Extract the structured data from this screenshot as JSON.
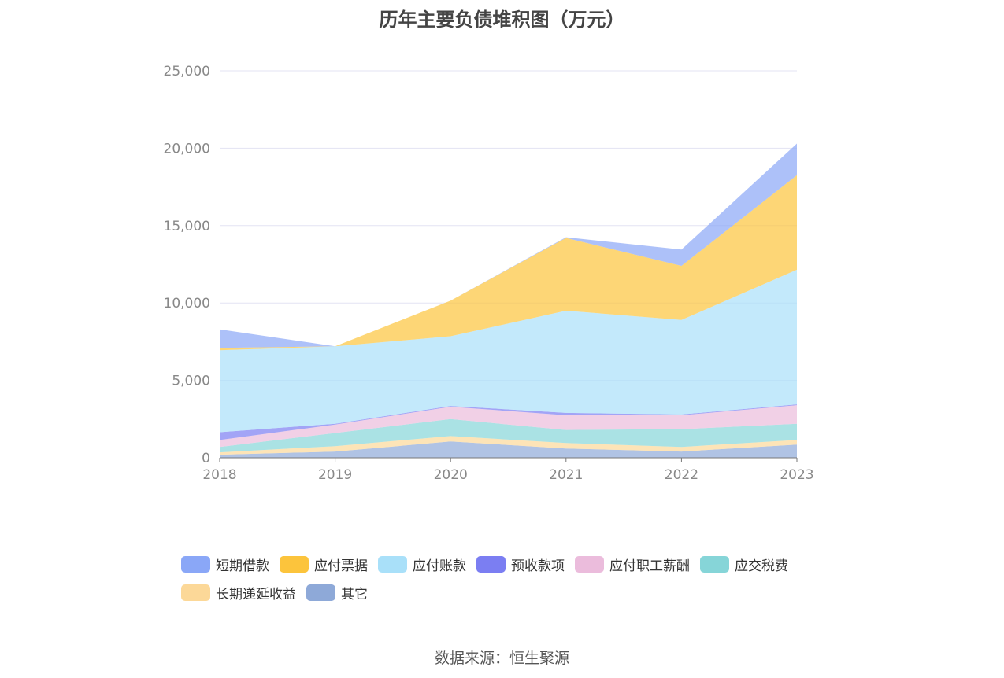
{
  "chart_data": {
    "type": "area",
    "stacked": true,
    "title": "历年主要负债堆积图（万元）",
    "source": "数据来源：恒生聚源",
    "categories": [
      "2018",
      "2019",
      "2020",
      "2021",
      "2022",
      "2023"
    ],
    "ylim": [
      0,
      25000
    ],
    "yticks": [
      0,
      5000,
      10000,
      15000,
      20000,
      25000
    ],
    "ytick_labels": [
      "0",
      "5,000",
      "10,000",
      "15,000",
      "20,000",
      "25,000"
    ],
    "grid": true,
    "legend_position": "bottom",
    "series": [
      {
        "name": "短期借款",
        "color": "#8aa7f7",
        "values": [
          1200,
          0,
          0,
          50,
          1050,
          2050
        ]
      },
      {
        "name": "应付票据",
        "color": "#fcc43c",
        "values": [
          150,
          0,
          2300,
          4700,
          3500,
          6100
        ]
      },
      {
        "name": "应付账款",
        "color": "#a9e0f9",
        "values": [
          5300,
          5000,
          4500,
          6600,
          6100,
          8700
        ]
      },
      {
        "name": "预收款项",
        "color": "#7b7ef2",
        "values": [
          500,
          50,
          50,
          150,
          50,
          50
        ]
      },
      {
        "name": "应付职工薪酬",
        "color": "#ebbcdc",
        "values": [
          450,
          550,
          800,
          950,
          900,
          1200
        ]
      },
      {
        "name": "应交税费",
        "color": "#86d5d8",
        "values": [
          350,
          850,
          1100,
          850,
          1150,
          1050
        ]
      },
      {
        "name": "长期递延收益",
        "color": "#fcd898",
        "values": [
          150,
          350,
          350,
          350,
          300,
          300
        ]
      },
      {
        "name": "其它",
        "color": "#8ea9d8",
        "values": [
          200,
          400,
          1050,
          600,
          400,
          850
        ]
      }
    ]
  }
}
